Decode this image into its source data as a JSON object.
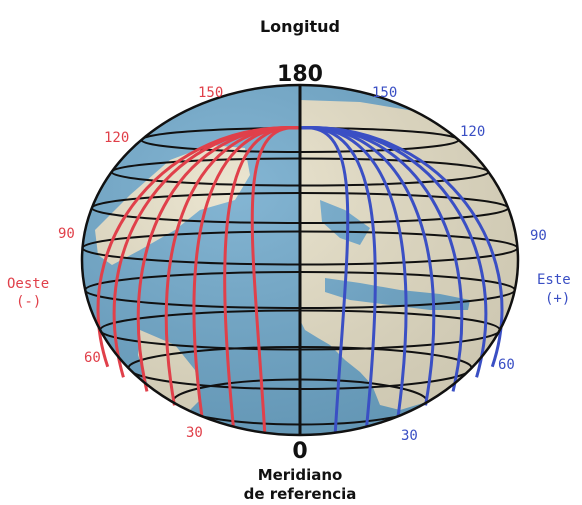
{
  "title": "Longitud",
  "top_label": "180",
  "bottom_label": "0",
  "reference": {
    "line1": "Meridiano",
    "line2": "de referencia"
  },
  "west": {
    "name": "Oeste",
    "sign": "(-)",
    "ticks": {
      "t150": "150",
      "t120": "120",
      "t90": "90",
      "t60": "60",
      "t30": "30"
    }
  },
  "east": {
    "name": "Este",
    "sign": "(+)",
    "ticks": {
      "t150": "150",
      "t120": "120",
      "t90": "90",
      "t60": "60",
      "t30": "30"
    }
  },
  "colors": {
    "west": "#e0404a",
    "east": "#3a4fc4",
    "ocean": "#6fa9cc",
    "land": "#e8e1c8",
    "grid": "#111111"
  }
}
